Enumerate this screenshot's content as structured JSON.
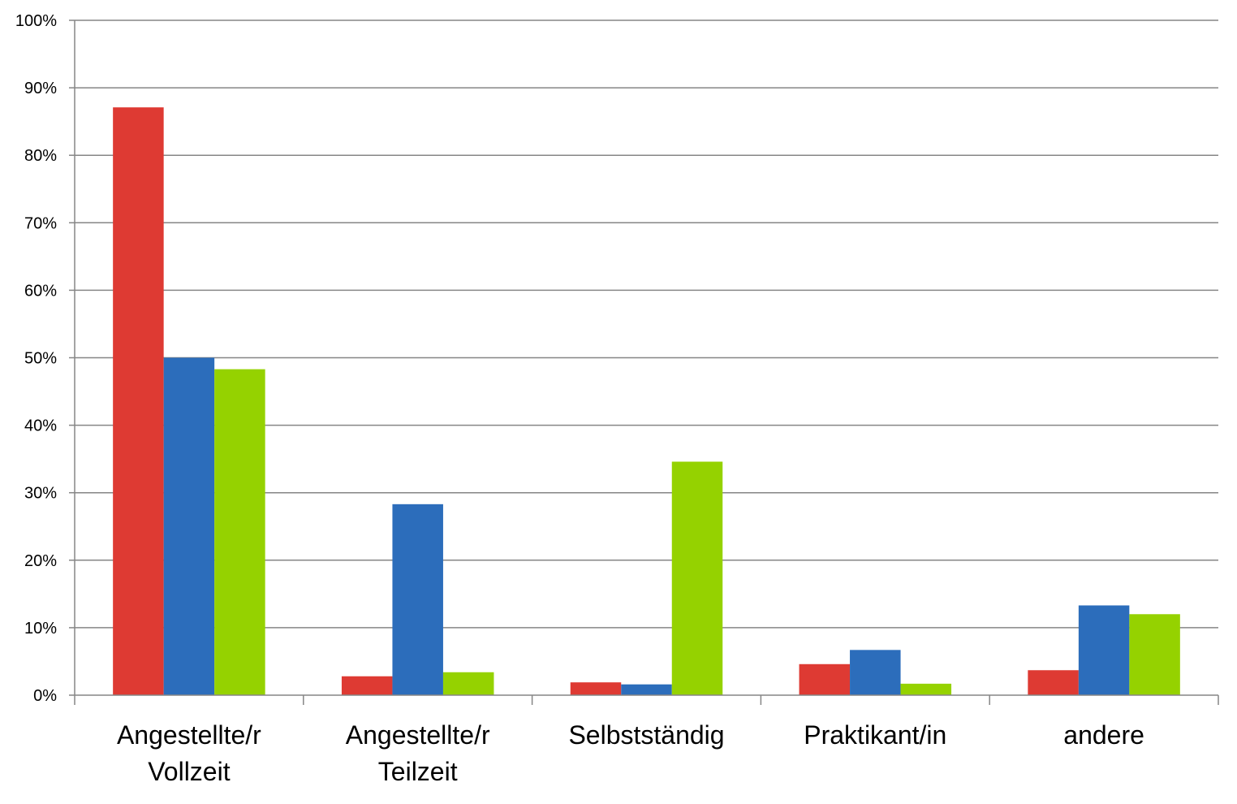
{
  "chart_data": {
    "type": "bar",
    "title": "",
    "xlabel": "",
    "ylabel": "",
    "categories": [
      [
        "Angestellte/r",
        "Vollzeit"
      ],
      [
        "Angestellte/r",
        "Teilzeit"
      ],
      [
        "Selbstständig"
      ],
      [
        "Praktikant/in"
      ],
      [
        "andere"
      ]
    ],
    "series": [
      {
        "color": "#DE3A33",
        "values": [
          87.1,
          2.8,
          1.9,
          4.6,
          3.7
        ]
      },
      {
        "color": "#2C6DBB",
        "values": [
          50.0,
          28.3,
          1.6,
          6.7,
          13.3
        ]
      },
      {
        "color": "#95D200",
        "values": [
          48.3,
          3.4,
          34.6,
          1.7,
          12.0
        ]
      }
    ],
    "ylim": [
      0,
      100
    ],
    "yticks": [
      0,
      10,
      20,
      30,
      40,
      50,
      60,
      70,
      80,
      90,
      100
    ],
    "ytick_suffix": "%",
    "grid": true,
    "gridline_color": "#868686",
    "axis_color": "#868686",
    "legend": "none"
  }
}
